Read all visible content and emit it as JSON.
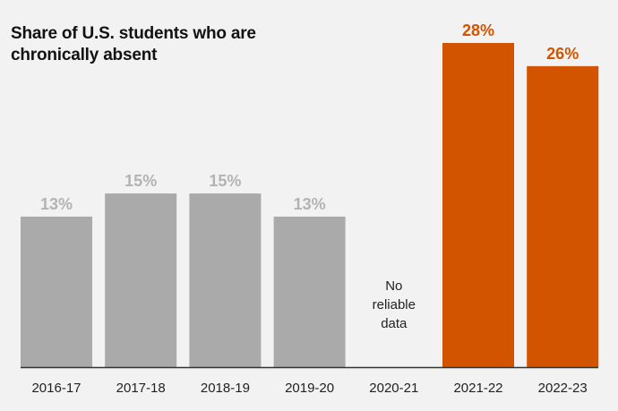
{
  "chart_data": {
    "type": "bar",
    "title": "Share of U.S. students who are chronically absent",
    "categories": [
      "2016-17",
      "2017-18",
      "2018-19",
      "2019-20",
      "2020-21",
      "2021-22",
      "2022-23"
    ],
    "values": [
      13,
      15,
      15,
      13,
      null,
      28,
      26
    ],
    "value_labels": [
      "13%",
      "15%",
      "15%",
      "13%",
      "",
      "28%",
      "26%"
    ],
    "missing_note": [
      "No",
      "reliable",
      "data"
    ],
    "xlabel": "",
    "ylabel": "",
    "ylim": [
      0,
      30
    ],
    "grid": false,
    "legend": "none",
    "colors": {
      "pre_pandemic_bar": "#aaaaaa",
      "pre_pandemic_label": "#b3b3b3",
      "post_pandemic_bar": "#d35400",
      "post_pandemic_label": "#d35400",
      "baseline": "#333333",
      "tick_label": "#222222",
      "note": "#222222"
    },
    "highlight_categories": [
      "2021-22",
      "2022-23"
    ]
  }
}
